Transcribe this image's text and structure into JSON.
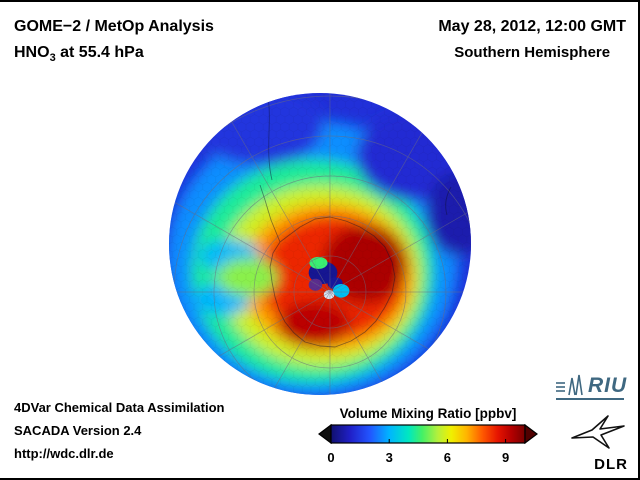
{
  "header": {
    "title": "GOME−2 / MetOp Analysis",
    "species_prefix": "HNO",
    "species_sub": "3",
    "species_suffix": " at 55.4 hPa",
    "datetime": "May 28, 2012, 12:00 GMT",
    "hemisphere": "Southern Hemisphere"
  },
  "footer": {
    "line1": "4DVar Chemical Data Assimilation",
    "line2": "SACADA Version 2.4",
    "url": "http://wdc.dlr.de"
  },
  "logos": {
    "riu_text": "RIU",
    "dlr_text": "DLR"
  },
  "chart_data": {
    "type": "heatmap",
    "title": "GOME−2 / MetOp Analysis — HNO3 at 55.4 hPa",
    "projection": "orthographic view of the Southern Hemisphere centered near the South Pole",
    "variable": "HNO3 Volume Mixing Ratio",
    "units": "ppbv",
    "level": "55.4 hPa",
    "valid_time": "May 28, 2012, 12:00 GMT",
    "background_value": 1.3,
    "colorbar": {
      "label": "Volume Mixing Ratio [ppbv]",
      "range": [
        0,
        10
      ],
      "ticks": [
        0,
        3,
        6,
        9
      ],
      "under_color": "#101010",
      "over_color": "#500000",
      "stops": [
        {
          "v": 0,
          "c": "#10106e"
        },
        {
          "v": 1,
          "c": "#2020c8"
        },
        {
          "v": 2,
          "c": "#2255ff"
        },
        {
          "v": 3,
          "c": "#00b4ff"
        },
        {
          "v": 4,
          "c": "#00e8c0"
        },
        {
          "v": 4.7,
          "c": "#44f066"
        },
        {
          "v": 5.5,
          "c": "#b4f03c"
        },
        {
          "v": 6.2,
          "c": "#f0f000"
        },
        {
          "v": 7,
          "c": "#ffb400"
        },
        {
          "v": 7.8,
          "c": "#ff5a00"
        },
        {
          "v": 8.6,
          "c": "#e61400"
        },
        {
          "v": 9.3,
          "c": "#b40000"
        },
        {
          "v": 10,
          "c": "#780000"
        }
      ]
    },
    "field_blobs": [
      {
        "dx": -0.05,
        "dy": 0.1,
        "rx": 0.97,
        "ry": 0.92,
        "v": 2.6
      },
      {
        "dx": -0.05,
        "dy": 0.18,
        "rx": 0.8,
        "ry": 0.74,
        "v": 4.3
      },
      {
        "dx": 0.0,
        "dy": 0.21,
        "rx": 0.67,
        "ry": 0.6,
        "v": 5.8
      },
      {
        "dx": 0.05,
        "dy": 0.22,
        "rx": 0.57,
        "ry": 0.49,
        "v": 7.2
      },
      {
        "dx": 0.08,
        "dy": 0.22,
        "rx": 0.48,
        "ry": 0.41,
        "v": 8.4
      },
      {
        "dx": 0.3,
        "dy": 0.13,
        "rx": 0.28,
        "ry": 0.26,
        "v": 9.4
      },
      {
        "dx": -0.04,
        "dy": 0.53,
        "rx": 0.24,
        "ry": 0.15,
        "v": 9.2
      },
      {
        "dx": 0.64,
        "dy": -0.58,
        "rx": 0.4,
        "ry": 0.3,
        "v": 1.2
      },
      {
        "dx": 0.92,
        "dy": -0.2,
        "rx": 0.22,
        "ry": 0.28,
        "v": 0.7
      },
      {
        "dx": -0.4,
        "dy": -0.78,
        "rx": 0.42,
        "ry": 0.26,
        "v": 1.4
      },
      {
        "dx": -0.6,
        "dy": 0.08,
        "rx": 0.2,
        "ry": 0.11,
        "v": 3.1
      },
      {
        "dx": -0.64,
        "dy": 0.36,
        "rx": 0.18,
        "ry": 0.11,
        "v": 3.0
      },
      {
        "dx": -0.48,
        "dy": 0.22,
        "rx": 0.2,
        "ry": 0.13,
        "v": 5.2
      }
    ],
    "polar_gap_blobs": [
      {
        "dx": 0.02,
        "dy": 0.19,
        "rx": 0.095,
        "ry": 0.075,
        "v": 0.4
      },
      {
        "dx": 0.1,
        "dy": 0.26,
        "rx": 0.05,
        "ry": 0.04,
        "v": 0.5
      },
      {
        "dx": -0.03,
        "dy": 0.27,
        "rx": 0.045,
        "ry": 0.04,
        "c": "#5b2d8e"
      },
      {
        "dx": 0.14,
        "dy": 0.31,
        "rx": 0.055,
        "ry": 0.045,
        "v": 3.2
      },
      {
        "dx": -0.01,
        "dy": 0.125,
        "rx": 0.06,
        "ry": 0.04,
        "v": 4.6
      },
      {
        "dx": 0.06,
        "dy": 0.335,
        "rx": 0.035,
        "ry": 0.03,
        "c": "#dceaf8"
      }
    ],
    "notes": "High HNO3 (8-10 ppbv) region covers Antarctica with maximum east of the pole; low values (0-2 ppbv) around the mid-latitude rim, lowest toward the upper-right sector; wavy 3-5 ppbv filaments on the left; small cluster of very low / missing data at the pole."
  }
}
